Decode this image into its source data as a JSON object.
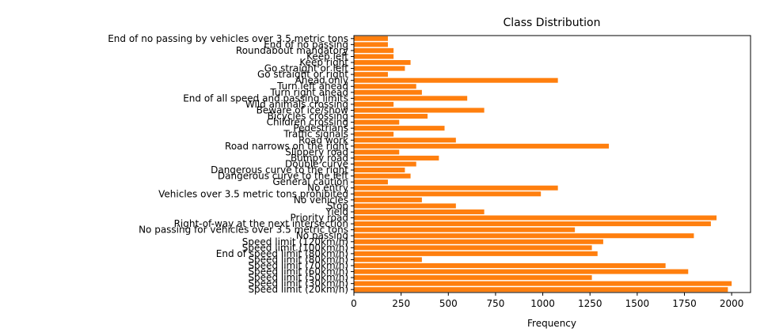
{
  "chart_data": {
    "type": "bar",
    "orientation": "horizontal",
    "title": "Class Distribution",
    "xlabel": "Frequency",
    "ylabel": "",
    "xlim": [
      0,
      2100
    ],
    "x_ticks": [
      0,
      250,
      500,
      750,
      1000,
      1250,
      1500,
      1750,
      2000
    ],
    "grid": false,
    "bar_color": "#ff7f0e",
    "categories": [
      "Speed limit (20km/h)",
      "Speed limit (30km/h)",
      "Speed limit (50km/h)",
      "Speed limit (60km/h)",
      "Speed limit (70km/h)",
      "Speed limit (80km/h)",
      "End of speed limit (80km/h)",
      "Speed limit (100km/h)",
      "Speed limit (120km/h)",
      "No passing",
      "No passing for vehicles over 3.5 metric tons",
      "Right-of-way at the next intersection",
      "Priority road",
      "Yield",
      "Stop",
      "No vehicles",
      "Vehicles over 3.5 metric tons prohibited",
      "No entry",
      "General caution",
      "Dangerous curve to the left",
      "Dangerous curve to the right",
      "Double curve",
      "Bumpy road",
      "Slippery road",
      "Road narrows on the right",
      "Road work",
      "Traffic signals",
      "Pedestrians",
      "Children crossing",
      "Bicycles crossing",
      "Beware of ice/snow",
      "Wild animals crossing",
      "End of all speed and passing limits",
      "Turn right ahead",
      "Turn left ahead",
      "Ahead only",
      "Go straight or right",
      "Go straight or left",
      "Keep right",
      "Keep left",
      "Roundabout mandatory",
      "End of no passing",
      "End of no passing by vehicles over 3.5 metric tons"
    ],
    "values": [
      1980,
      2000,
      1260,
      1770,
      1650,
      360,
      1290,
      1260,
      1320,
      1800,
      1170,
      1890,
      1920,
      690,
      540,
      360,
      990,
      1080,
      180,
      300,
      270,
      330,
      450,
      240,
      1350,
      540,
      210,
      480,
      240,
      390,
      690,
      210,
      600,
      360,
      330,
      1080,
      180,
      270,
      300,
      210,
      210,
      180,
      180
    ],
    "visible_label_indices": [
      0,
      1,
      2,
      3,
      4,
      5,
      6,
      7,
      8,
      9,
      10,
      11,
      12,
      13,
      14,
      15,
      16,
      17,
      18,
      19,
      20,
      21,
      22,
      23,
      24,
      25,
      26,
      27,
      28,
      29,
      30,
      31,
      32,
      33,
      34,
      35,
      36,
      37,
      38,
      39,
      40,
      41,
      42
    ]
  }
}
